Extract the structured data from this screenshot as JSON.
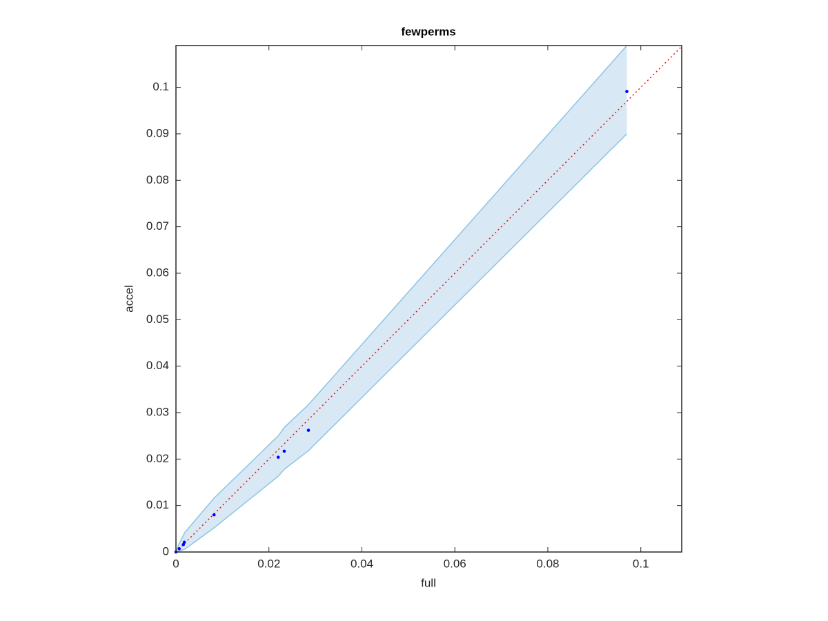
{
  "chart_data": {
    "type": "scatter",
    "title": "fewperms",
    "x_label": "full",
    "y_label": "accel",
    "xlim": [
      0,
      0.1088
    ],
    "ylim": [
      0,
      0.109
    ],
    "xticks": [
      0,
      0.02,
      0.04,
      0.06,
      0.08,
      0.1
    ],
    "yticks": [
      0,
      0.01,
      0.02,
      0.03,
      0.04,
      0.05,
      0.06,
      0.07,
      0.08,
      0.09,
      0.1
    ],
    "points": {
      "color": "#0000ff",
      "x": [
        0,
        0.0007,
        0.0016,
        0.0018,
        0.0082,
        0.022,
        0.0233,
        0.0285,
        0.097
      ],
      "values": [
        0,
        0.0007,
        0.0016,
        0.0021,
        0.008,
        0.0204,
        0.0217,
        0.0262,
        0.0991
      ]
    },
    "band": {
      "color": "#d9e8f5",
      "edge_color": "#8ec3e2",
      "x": [
        0,
        0.0007,
        0.0019,
        0.0082,
        0.022,
        0.0233,
        0.0285,
        0.097
      ],
      "lower": [
        0,
        0.0002,
        0.0006,
        0.0052,
        0.0163,
        0.0178,
        0.0218,
        0.09
      ],
      "upper": [
        0,
        0.0018,
        0.0042,
        0.0116,
        0.025,
        0.0268,
        0.0317,
        0.109
      ]
    },
    "diagonal": {
      "color": "#ff0000",
      "x": [
        0,
        0.1088
      ],
      "values": [
        0,
        0.1088
      ]
    }
  }
}
